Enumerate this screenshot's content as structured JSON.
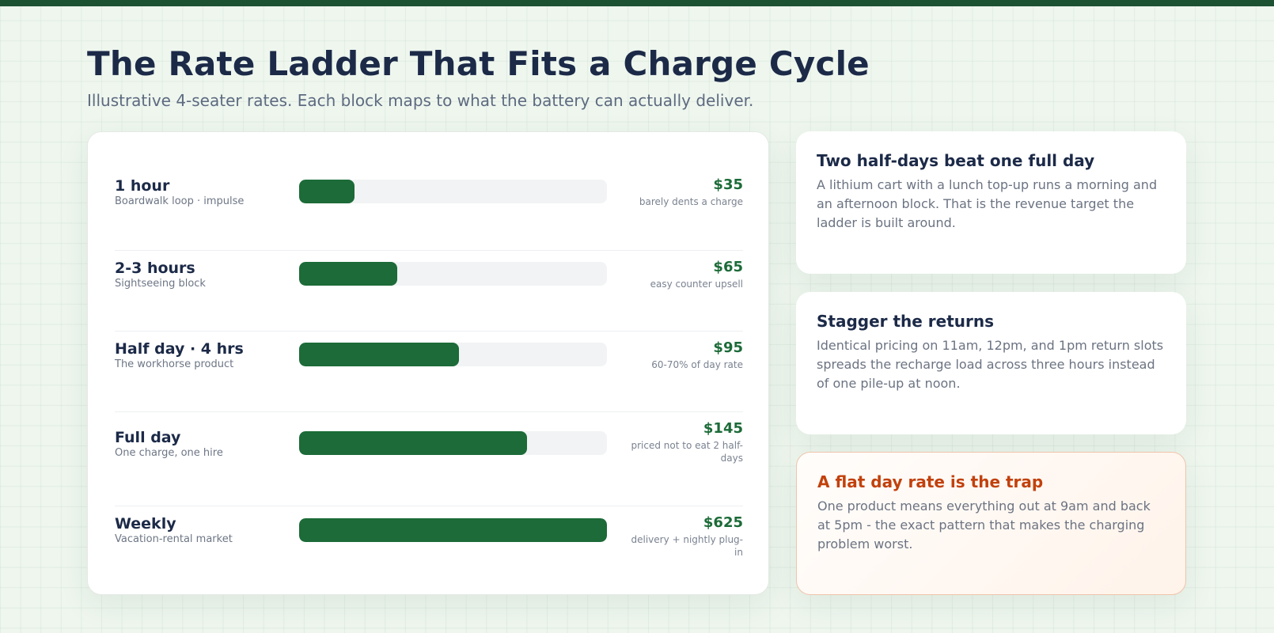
{
  "header": {
    "title": "The Rate Ladder That Fits a Charge Cycle",
    "subtitle": "Illustrative 4-seater rates. Each block maps to what the battery can actually deliver."
  },
  "rates": [
    {
      "name": "1 hour",
      "desc": "Boardwalk loop · impulse",
      "price": "$35",
      "note": "barely dents a charge",
      "fill": 0.18
    },
    {
      "name": "2-3 hours",
      "desc": "Sightseeing block",
      "price": "$65",
      "note": "easy counter upsell",
      "fill": 0.32
    },
    {
      "name": "Half day · 4 hrs",
      "desc": "The workhorse product",
      "price": "$95",
      "note": "60-70% of day rate",
      "fill": 0.52
    },
    {
      "name": "Full day",
      "desc": "One charge, one hire",
      "price": "$145",
      "note": "priced not to eat 2 half-days",
      "fill": 0.74
    },
    {
      "name": "Weekly",
      "desc": "Vacation-rental market",
      "price": "$625",
      "note": "delivery + nightly plug-in",
      "fill": 1.0
    }
  ],
  "tips": [
    {
      "title": "Two half-days beat one full day",
      "body": "A lithium cart with a lunch top-up runs a morning and an afternoon block. That is the revenue target the ladder is built around."
    },
    {
      "title": "Stagger the returns",
      "body": "Identical pricing on 11am, 12pm, and 1pm return slots spreads the recharge load across three hours instead of one pile-up at noon."
    },
    {
      "title": "A flat day rate is the trap",
      "body": "One product means everything out at 9am and back at 5pm - the exact pattern that makes the charging problem worst."
    }
  ],
  "colors": {
    "accent": "#1c6b38",
    "top_bar": "#1c5232",
    "warning": "#c2410c",
    "ink": "#1c2a48"
  }
}
